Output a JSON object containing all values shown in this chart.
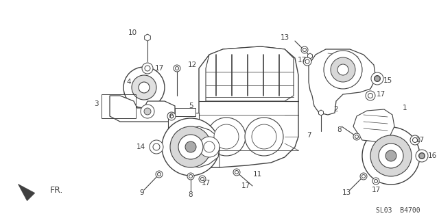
{
  "bg_color": "#ffffff",
  "line_color": "#404040",
  "fig_width": 6.4,
  "fig_height": 3.19,
  "dpi": 100,
  "watermark": "SL03  B4700",
  "arrow_label": "FR."
}
